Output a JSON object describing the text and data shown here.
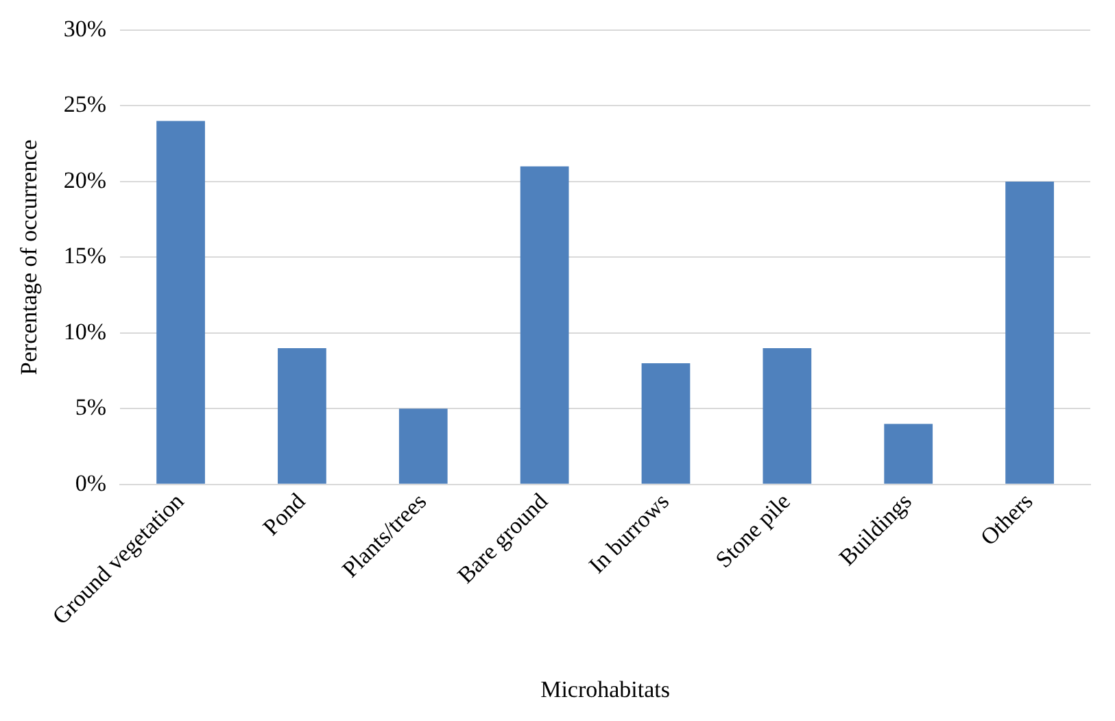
{
  "chart_data": {
    "type": "bar",
    "xlabel": "Microhabitats",
    "ylabel": "Percentage of occurrence",
    "categories": [
      "Ground vegetation",
      "Pond",
      "Plants/trees",
      "Bare ground",
      "In burrows",
      "Stone pile",
      "Buildings",
      "Others"
    ],
    "values": [
      24,
      9,
      5,
      21,
      8,
      9,
      4,
      20
    ],
    "color": "#4f81bd",
    "ylim": [
      0,
      30
    ],
    "yticks": [
      {
        "value": 0,
        "label": "0%"
      },
      {
        "value": 5,
        "label": "5%"
      },
      {
        "value": 10,
        "label": "10%"
      },
      {
        "value": 15,
        "label": "15%"
      },
      {
        "value": 20,
        "label": "20%"
      },
      {
        "value": 25,
        "label": "25%"
      },
      {
        "value": 30,
        "label": "30%"
      }
    ],
    "grid": "y",
    "legend": false
  }
}
